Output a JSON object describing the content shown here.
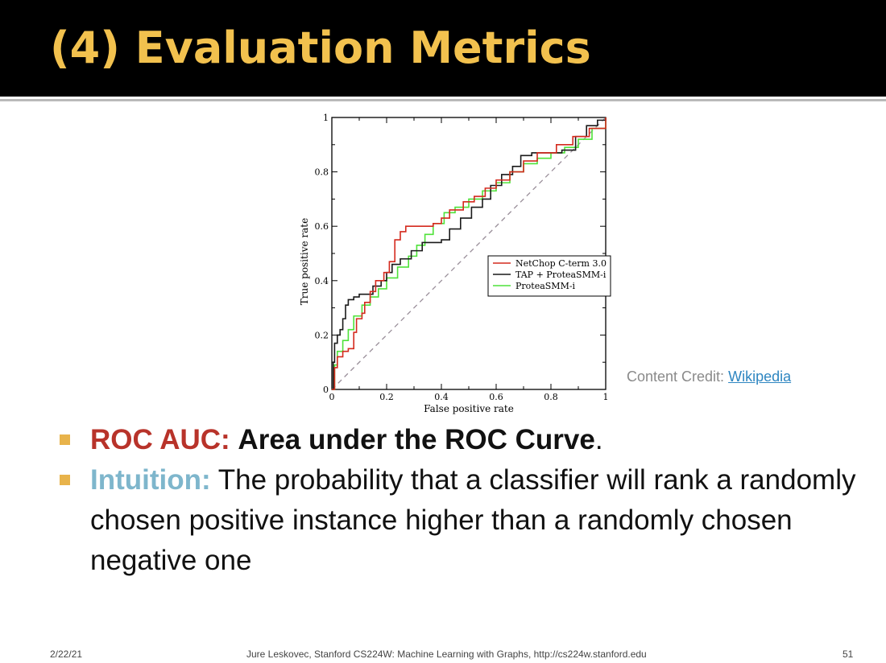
{
  "slide": {
    "title": "(4) Evaluation Metrics",
    "credit_label": "Content Credit:",
    "credit_link": "Wikipedia",
    "bullets": [
      {
        "label": "ROC AUC:",
        "bold_text": "Area under the ROC Curve",
        "text": "."
      },
      {
        "label": "Intuition:",
        "text": "The probability that a classifier will rank a randomly chosen positive instance higher than a randomly chosen negative one"
      }
    ],
    "footer": {
      "date": "2/22/21",
      "source": "Jure Leskovec, Stanford CS224W: Machine Learning with Graphs, http://cs224w.stanford.edu",
      "page": "51"
    },
    "colors": {
      "title": "#f2c14e",
      "header_bg": "#000000",
      "bullet_marker": "#e8b34b",
      "roc_label": "#b8332a",
      "intuition_label": "#7eb6cc"
    }
  },
  "chart_data": {
    "type": "line",
    "xlabel": "False positive rate",
    "ylabel": "True positive rate",
    "xlim": [
      0,
      1
    ],
    "ylim": [
      0,
      1
    ],
    "xticks": [
      "0",
      "0.2",
      "0.4",
      "0.6",
      "0.8",
      "1"
    ],
    "yticks": [
      "0",
      "0.2",
      "0.4",
      "0.6",
      "0.8",
      "1"
    ],
    "legend_position": "center-right",
    "diagonal": {
      "style": "dashed",
      "color": "#9a8f9a",
      "points": [
        [
          0,
          0
        ],
        [
          1,
          1
        ]
      ]
    },
    "series": [
      {
        "name": "NetChop C-term 3.0",
        "color": "#d42a1e",
        "points": [
          [
            0,
            0
          ],
          [
            0.01,
            0.08
          ],
          [
            0.02,
            0.12
          ],
          [
            0.04,
            0.14
          ],
          [
            0.06,
            0.15
          ],
          [
            0.08,
            0.21
          ],
          [
            0.09,
            0.26
          ],
          [
            0.11,
            0.28
          ],
          [
            0.12,
            0.32
          ],
          [
            0.14,
            0.36
          ],
          [
            0.16,
            0.4
          ],
          [
            0.19,
            0.43
          ],
          [
            0.21,
            0.47
          ],
          [
            0.23,
            0.55
          ],
          [
            0.25,
            0.58
          ],
          [
            0.27,
            0.6
          ],
          [
            0.3,
            0.6
          ],
          [
            0.34,
            0.6
          ],
          [
            0.37,
            0.61
          ],
          [
            0.4,
            0.63
          ],
          [
            0.43,
            0.66
          ],
          [
            0.48,
            0.69
          ],
          [
            0.52,
            0.71
          ],
          [
            0.56,
            0.74
          ],
          [
            0.6,
            0.77
          ],
          [
            0.65,
            0.8
          ],
          [
            0.7,
            0.84
          ],
          [
            0.75,
            0.87
          ],
          [
            0.82,
            0.9
          ],
          [
            0.88,
            0.93
          ],
          [
            0.94,
            0.96
          ],
          [
            1,
            1
          ]
        ]
      },
      {
        "name": "TAP + ProteaSMM-i",
        "color": "#1a1a1a",
        "points": [
          [
            0,
            0
          ],
          [
            0.005,
            0.1
          ],
          [
            0.01,
            0.17
          ],
          [
            0.02,
            0.2
          ],
          [
            0.03,
            0.22
          ],
          [
            0.04,
            0.26
          ],
          [
            0.05,
            0.31
          ],
          [
            0.06,
            0.33
          ],
          [
            0.08,
            0.34
          ],
          [
            0.1,
            0.35
          ],
          [
            0.12,
            0.35
          ],
          [
            0.15,
            0.38
          ],
          [
            0.18,
            0.4
          ],
          [
            0.2,
            0.43
          ],
          [
            0.22,
            0.46
          ],
          [
            0.25,
            0.48
          ],
          [
            0.29,
            0.51
          ],
          [
            0.33,
            0.54
          ],
          [
            0.37,
            0.54
          ],
          [
            0.4,
            0.55
          ],
          [
            0.43,
            0.59
          ],
          [
            0.47,
            0.63
          ],
          [
            0.51,
            0.67
          ],
          [
            0.55,
            0.7
          ],
          [
            0.58,
            0.75
          ],
          [
            0.62,
            0.79
          ],
          [
            0.66,
            0.82
          ],
          [
            0.69,
            0.86
          ],
          [
            0.73,
            0.87
          ],
          [
            0.78,
            0.87
          ],
          [
            0.84,
            0.88
          ],
          [
            0.89,
            0.93
          ],
          [
            0.93,
            0.97
          ],
          [
            0.97,
            0.99
          ],
          [
            1,
            1
          ]
        ]
      },
      {
        "name": "ProteaSMM-i",
        "color": "#4fe23a",
        "points": [
          [
            0,
            0
          ],
          [
            0.01,
            0.09
          ],
          [
            0.02,
            0.14
          ],
          [
            0.04,
            0.18
          ],
          [
            0.06,
            0.22
          ],
          [
            0.08,
            0.27
          ],
          [
            0.11,
            0.31
          ],
          [
            0.14,
            0.34
          ],
          [
            0.17,
            0.37
          ],
          [
            0.2,
            0.41
          ],
          [
            0.24,
            0.45
          ],
          [
            0.28,
            0.49
          ],
          [
            0.31,
            0.53
          ],
          [
            0.34,
            0.57
          ],
          [
            0.37,
            0.61
          ],
          [
            0.41,
            0.65
          ],
          [
            0.45,
            0.67
          ],
          [
            0.5,
            0.7
          ],
          [
            0.55,
            0.73
          ],
          [
            0.6,
            0.76
          ],
          [
            0.65,
            0.8
          ],
          [
            0.7,
            0.83
          ],
          [
            0.75,
            0.85
          ],
          [
            0.8,
            0.87
          ],
          [
            0.85,
            0.89
          ],
          [
            0.9,
            0.92
          ],
          [
            0.95,
            0.96
          ],
          [
            1,
            1
          ]
        ]
      }
    ]
  }
}
